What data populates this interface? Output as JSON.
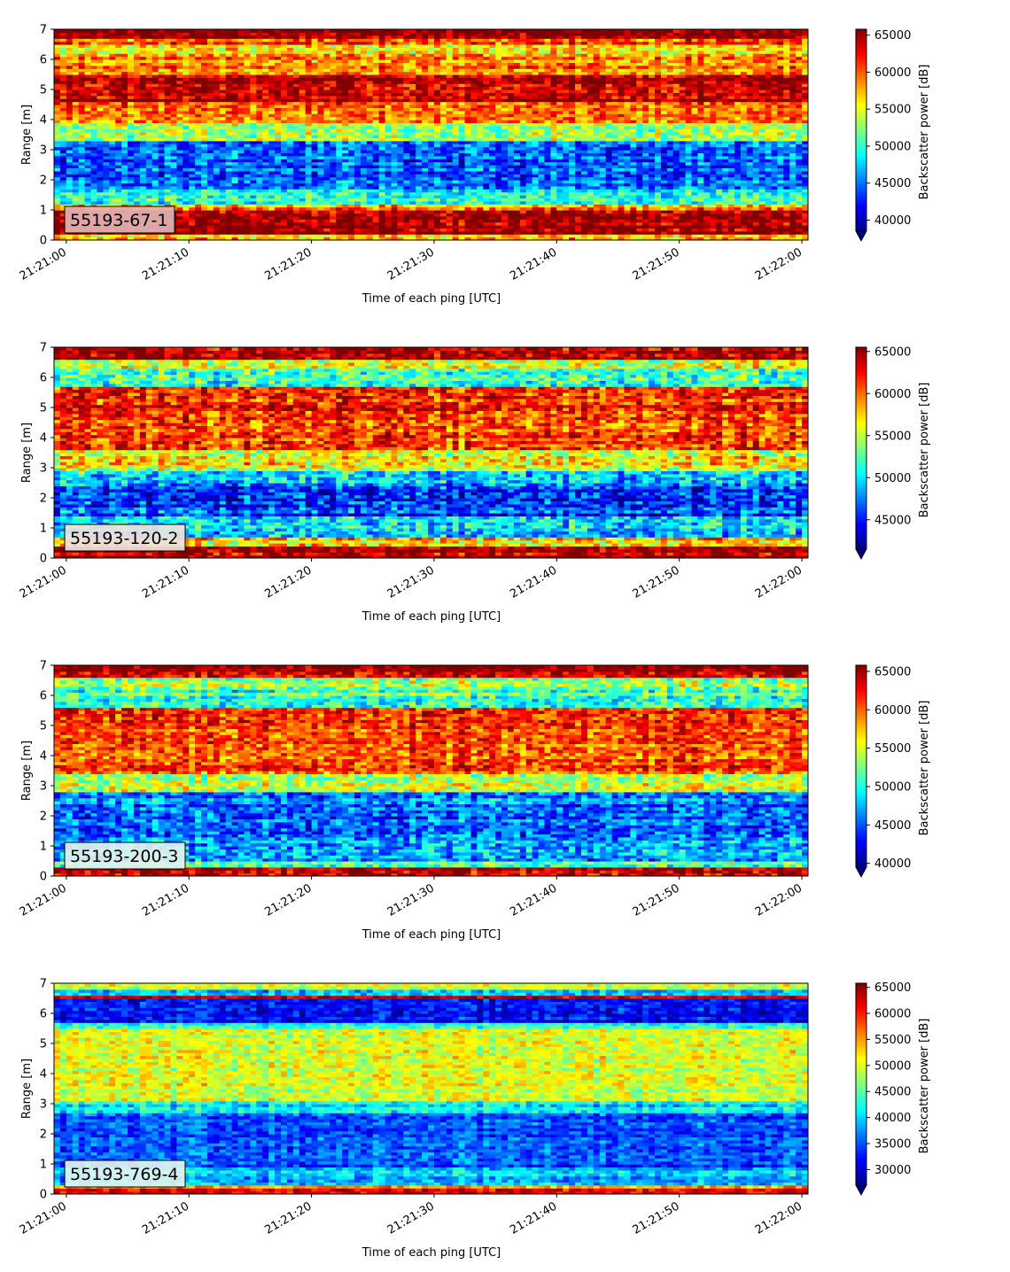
{
  "colors": {
    "jet": [
      "#00007f",
      "#0000ff",
      "#007fff",
      "#00ffff",
      "#7fff7f",
      "#ffff00",
      "#ff7f00",
      "#ff0000",
      "#7f0000"
    ],
    "badge_edge": "#000000"
  },
  "chart_data": [
    {
      "type": "heatmap",
      "label": "55193-67-1",
      "badge_color": "#e3b3b3",
      "xlabel": "Time of each ping [UTC]",
      "ylabel": "Range [m]",
      "x_ticks": [
        "21:21:00",
        "21:21:10",
        "21:21:20",
        "21:21:30",
        "21:21:40",
        "21:21:50",
        "21:22:00"
      ],
      "xlim": [
        "21:20:59",
        "21:22:00.5"
      ],
      "y_ticks": [
        0,
        1,
        2,
        3,
        4,
        5,
        6,
        7
      ],
      "ylim": [
        0,
        7
      ],
      "colorbar": {
        "label": "Backscatter power [dB]",
        "vmin": 38500,
        "vmax": 65800,
        "ticks": [
          40000,
          45000,
          50000,
          55000,
          60000,
          65000
        ],
        "extend": "min"
      },
      "bands": [
        {
          "range": [
            6.7,
            7.0
          ],
          "value": 65500
        },
        {
          "range": [
            6.5,
            6.7
          ],
          "value": 60000
        },
        {
          "range": [
            6.2,
            6.5
          ],
          "value": 55000
        },
        {
          "range": [
            5.5,
            6.2
          ],
          "value": 59000
        },
        {
          "range": [
            4.6,
            5.5
          ],
          "value": 64500
        },
        {
          "range": [
            3.9,
            4.6
          ],
          "value": 58500
        },
        {
          "range": [
            3.3,
            3.9
          ],
          "value": 53000
        },
        {
          "range": [
            2.5,
            3.3
          ],
          "value": 44500
        },
        {
          "range": [
            1.7,
            2.5
          ],
          "value": 44500
        },
        {
          "range": [
            1.2,
            1.7
          ],
          "value": 49000
        },
        {
          "range": [
            1.0,
            1.2
          ],
          "value": 58500
        },
        {
          "range": [
            0.25,
            1.0
          ],
          "value": 65500
        },
        {
          "range": [
            0.0,
            0.25
          ],
          "value": 57000
        }
      ]
    },
    {
      "type": "heatmap",
      "label": "55193-120-2",
      "badge_color": "#ede3e0",
      "xlabel": "Time of each ping [UTC]",
      "ylabel": "Range [m]",
      "x_ticks": [
        "21:21:00",
        "21:21:10",
        "21:21:20",
        "21:21:30",
        "21:21:40",
        "21:21:50",
        "21:22:00"
      ],
      "xlim": [
        "21:20:59",
        "21:22:00.5"
      ],
      "y_ticks": [
        0,
        1,
        2,
        3,
        4,
        5,
        6,
        7
      ],
      "ylim": [
        0,
        7
      ],
      "colorbar": {
        "label": "Backscatter power [dB]",
        "vmin": 41500,
        "vmax": 65500,
        "ticks": [
          45000,
          50000,
          55000,
          60000,
          65000
        ],
        "extend": "min"
      },
      "bands": [
        {
          "range": [
            6.6,
            7.0
          ],
          "value": 64500
        },
        {
          "range": [
            6.3,
            6.6
          ],
          "value": 55000
        },
        {
          "range": [
            5.7,
            6.3
          ],
          "value": 52500
        },
        {
          "range": [
            4.6,
            5.7
          ],
          "value": 61500
        },
        {
          "range": [
            3.6,
            4.6
          ],
          "value": 61000
        },
        {
          "range": [
            2.9,
            3.6
          ],
          "value": 56000
        },
        {
          "range": [
            2.5,
            2.9
          ],
          "value": 48500
        },
        {
          "range": [
            1.4,
            2.5
          ],
          "value": 46000
        },
        {
          "range": [
            0.7,
            1.4
          ],
          "value": 50500
        },
        {
          "range": [
            0.45,
            0.7
          ],
          "value": 58000
        },
        {
          "range": [
            0.0,
            0.45
          ],
          "value": 65000
        }
      ]
    },
    {
      "type": "heatmap",
      "label": "55193-200-3",
      "badge_color": "#e4f1ee",
      "xlabel": "Time of each ping [UTC]",
      "ylabel": "Range [m]",
      "x_ticks": [
        "21:21:00",
        "21:21:10",
        "21:21:20",
        "21:21:30",
        "21:21:40",
        "21:21:50",
        "21:22:00"
      ],
      "xlim": [
        "21:20:59",
        "21:22:00.5"
      ],
      "y_ticks": [
        0,
        1,
        2,
        3,
        4,
        5,
        6,
        7
      ],
      "ylim": [
        0,
        7
      ],
      "colorbar": {
        "label": "Backscatter power [dB]",
        "vmin": 39500,
        "vmax": 65800,
        "ticks": [
          40000,
          45000,
          50000,
          55000,
          60000,
          65000
        ],
        "extend": "min"
      },
      "bands": [
        {
          "range": [
            6.6,
            7.0
          ],
          "value": 64500
        },
        {
          "range": [
            6.2,
            6.6
          ],
          "value": 53000
        },
        {
          "range": [
            5.6,
            6.2
          ],
          "value": 51500
        },
        {
          "range": [
            3.4,
            5.6
          ],
          "value": 60500
        },
        {
          "range": [
            2.8,
            3.4
          ],
          "value": 54500
        },
        {
          "range": [
            1.3,
            2.8
          ],
          "value": 45500
        },
        {
          "range": [
            0.5,
            1.3
          ],
          "value": 47500
        },
        {
          "range": [
            0.3,
            0.5
          ],
          "value": 52000
        },
        {
          "range": [
            0.0,
            0.3
          ],
          "value": 65000
        }
      ]
    },
    {
      "type": "heatmap",
      "label": "55193-769-4",
      "badge_color": "#dff4f0",
      "xlabel": "Time of each ping [UTC]",
      "ylabel": "Range [m]",
      "x_ticks": [
        "21:21:00",
        "21:21:10",
        "21:21:20",
        "21:21:30",
        "21:21:40",
        "21:21:50",
        "21:22:00"
      ],
      "xlim": [
        "21:20:59",
        "21:22:00.5"
      ],
      "y_ticks": [
        0,
        1,
        2,
        3,
        4,
        5,
        6,
        7
      ],
      "ylim": [
        0,
        7
      ],
      "colorbar": {
        "label": "Backscatter power [dB]",
        "vmin": 27000,
        "vmax": 65800,
        "ticks": [
          30000,
          35000,
          40000,
          45000,
          50000,
          55000,
          60000,
          65000
        ],
        "extend": "min"
      },
      "bands": [
        {
          "range": [
            6.85,
            7.0
          ],
          "value": 50000
        },
        {
          "range": [
            6.6,
            6.85
          ],
          "value": 40000
        },
        {
          "range": [
            6.5,
            6.6
          ],
          "value": 62000
        },
        {
          "range": [
            5.7,
            6.5
          ],
          "value": 31500
        },
        {
          "range": [
            5.5,
            5.7
          ],
          "value": 42000
        },
        {
          "range": [
            3.1,
            5.5
          ],
          "value": 50000
        },
        {
          "range": [
            2.7,
            3.1
          ],
          "value": 41000
        },
        {
          "range": [
            0.9,
            2.7
          ],
          "value": 34500
        },
        {
          "range": [
            0.35,
            0.9
          ],
          "value": 39000
        },
        {
          "range": [
            0.25,
            0.35
          ],
          "value": 56000
        },
        {
          "range": [
            0.0,
            0.25
          ],
          "value": 63000
        }
      ]
    }
  ]
}
